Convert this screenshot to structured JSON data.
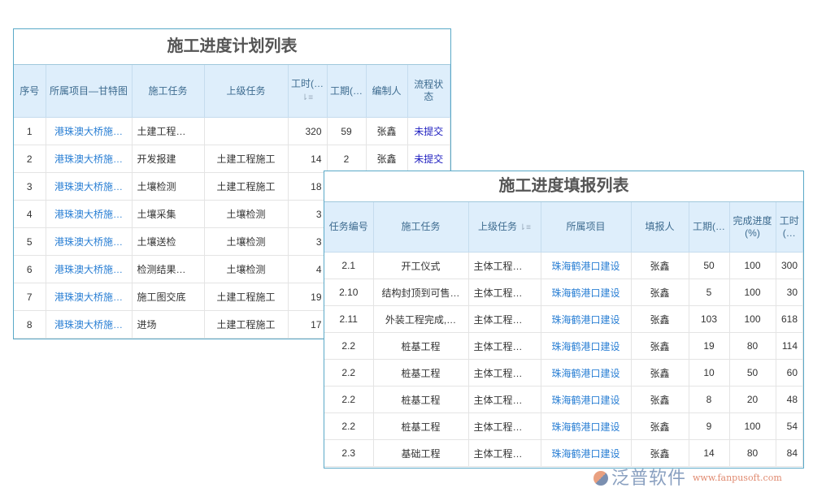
{
  "plan": {
    "title": "施工进度计划列表",
    "headers": [
      "序号",
      "所属项目—甘特图",
      "施工任务",
      "上级任务",
      "工时(…",
      "工期(…",
      "编制人",
      "流程状态"
    ],
    "rows": [
      [
        "1",
        "港珠澳大桥施…",
        "土建工程…",
        "",
        "320",
        "59",
        "张鑫",
        "未提交"
      ],
      [
        "2",
        "港珠澳大桥施…",
        "开发报建",
        "土建工程施工",
        "14",
        "2",
        "张鑫",
        "未提交"
      ],
      [
        "3",
        "港珠澳大桥施…",
        "土壤检测",
        "土建工程施工",
        "18",
        "",
        "",
        ""
      ],
      [
        "4",
        "港珠澳大桥施…",
        "土壤采集",
        "土壤检测",
        "3",
        "",
        "",
        ""
      ],
      [
        "5",
        "港珠澳大桥施…",
        "土壤送检",
        "土壤检测",
        "3",
        "",
        "",
        ""
      ],
      [
        "6",
        "港珠澳大桥施…",
        "检测结果…",
        "土壤检测",
        "4",
        "",
        "",
        ""
      ],
      [
        "7",
        "港珠澳大桥施…",
        "施工图交底",
        "土建工程施工",
        "19",
        "",
        "",
        ""
      ],
      [
        "8",
        "港珠澳大桥施…",
        "进场",
        "土建工程施工",
        "17",
        "",
        "",
        ""
      ]
    ]
  },
  "report": {
    "title": "施工进度填报列表",
    "headers": [
      "任务编号",
      "施工任务",
      "上级任务",
      "所属项目",
      "填报人",
      "工期(…",
      "完成进度(%)",
      "工时(…"
    ],
    "rows": [
      [
        "2.1",
        "开工仪式",
        "主体工程…",
        "珠海鹤港口建设",
        "张鑫",
        "50",
        "100",
        "300"
      ],
      [
        "2.10",
        "结构封顶到可售…",
        "主体工程…",
        "珠海鹤港口建设",
        "张鑫",
        "5",
        "100",
        "30"
      ],
      [
        "2.11",
        "外装工程完成,…",
        "主体工程…",
        "珠海鹤港口建设",
        "张鑫",
        "103",
        "100",
        "618"
      ],
      [
        "2.2",
        "桩基工程",
        "主体工程…",
        "珠海鹤港口建设",
        "张鑫",
        "19",
        "80",
        "114"
      ],
      [
        "2.2",
        "桩基工程",
        "主体工程…",
        "珠海鹤港口建设",
        "张鑫",
        "10",
        "50",
        "60"
      ],
      [
        "2.2",
        "桩基工程",
        "主体工程…",
        "珠海鹤港口建设",
        "张鑫",
        "8",
        "20",
        "48"
      ],
      [
        "2.2",
        "桩基工程",
        "主体工程…",
        "珠海鹤港口建设",
        "张鑫",
        "9",
        "100",
        "54"
      ],
      [
        "2.3",
        "基础工程",
        "主体工程…",
        "珠海鹤港口建设",
        "张鑫",
        "14",
        "80",
        "84"
      ]
    ]
  },
  "watermark": {
    "name": "泛普软件",
    "url": "www.fanpusoft.com"
  },
  "colors": {
    "link": "#2a7fd4",
    "status": "#2020c0",
    "header_bg": "#deeefb",
    "border": "#5aa9c8"
  }
}
